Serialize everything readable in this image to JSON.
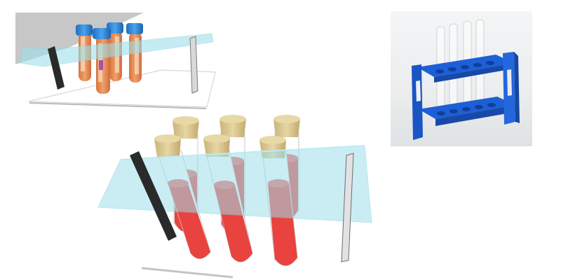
{
  "image": {
    "description_items": [
      "rack-with-capped-sample-tubes",
      "rack-with-corked-blood-tubes",
      "blue-plastic-test-tube-rack-photo"
    ],
    "colors": {
      "glass_shelf": "#9ee0ea",
      "blood_red": "#e8433f",
      "cork": "#d8c48a",
      "cap_blue": "#2f86d8",
      "label_orange": "#e8864a",
      "rack_blue": "#1d5fd6"
    },
    "counts": {
      "small_rack_tubes": 4,
      "large_rack_tubes": 6,
      "photo_rack_tubes": 4
    }
  }
}
